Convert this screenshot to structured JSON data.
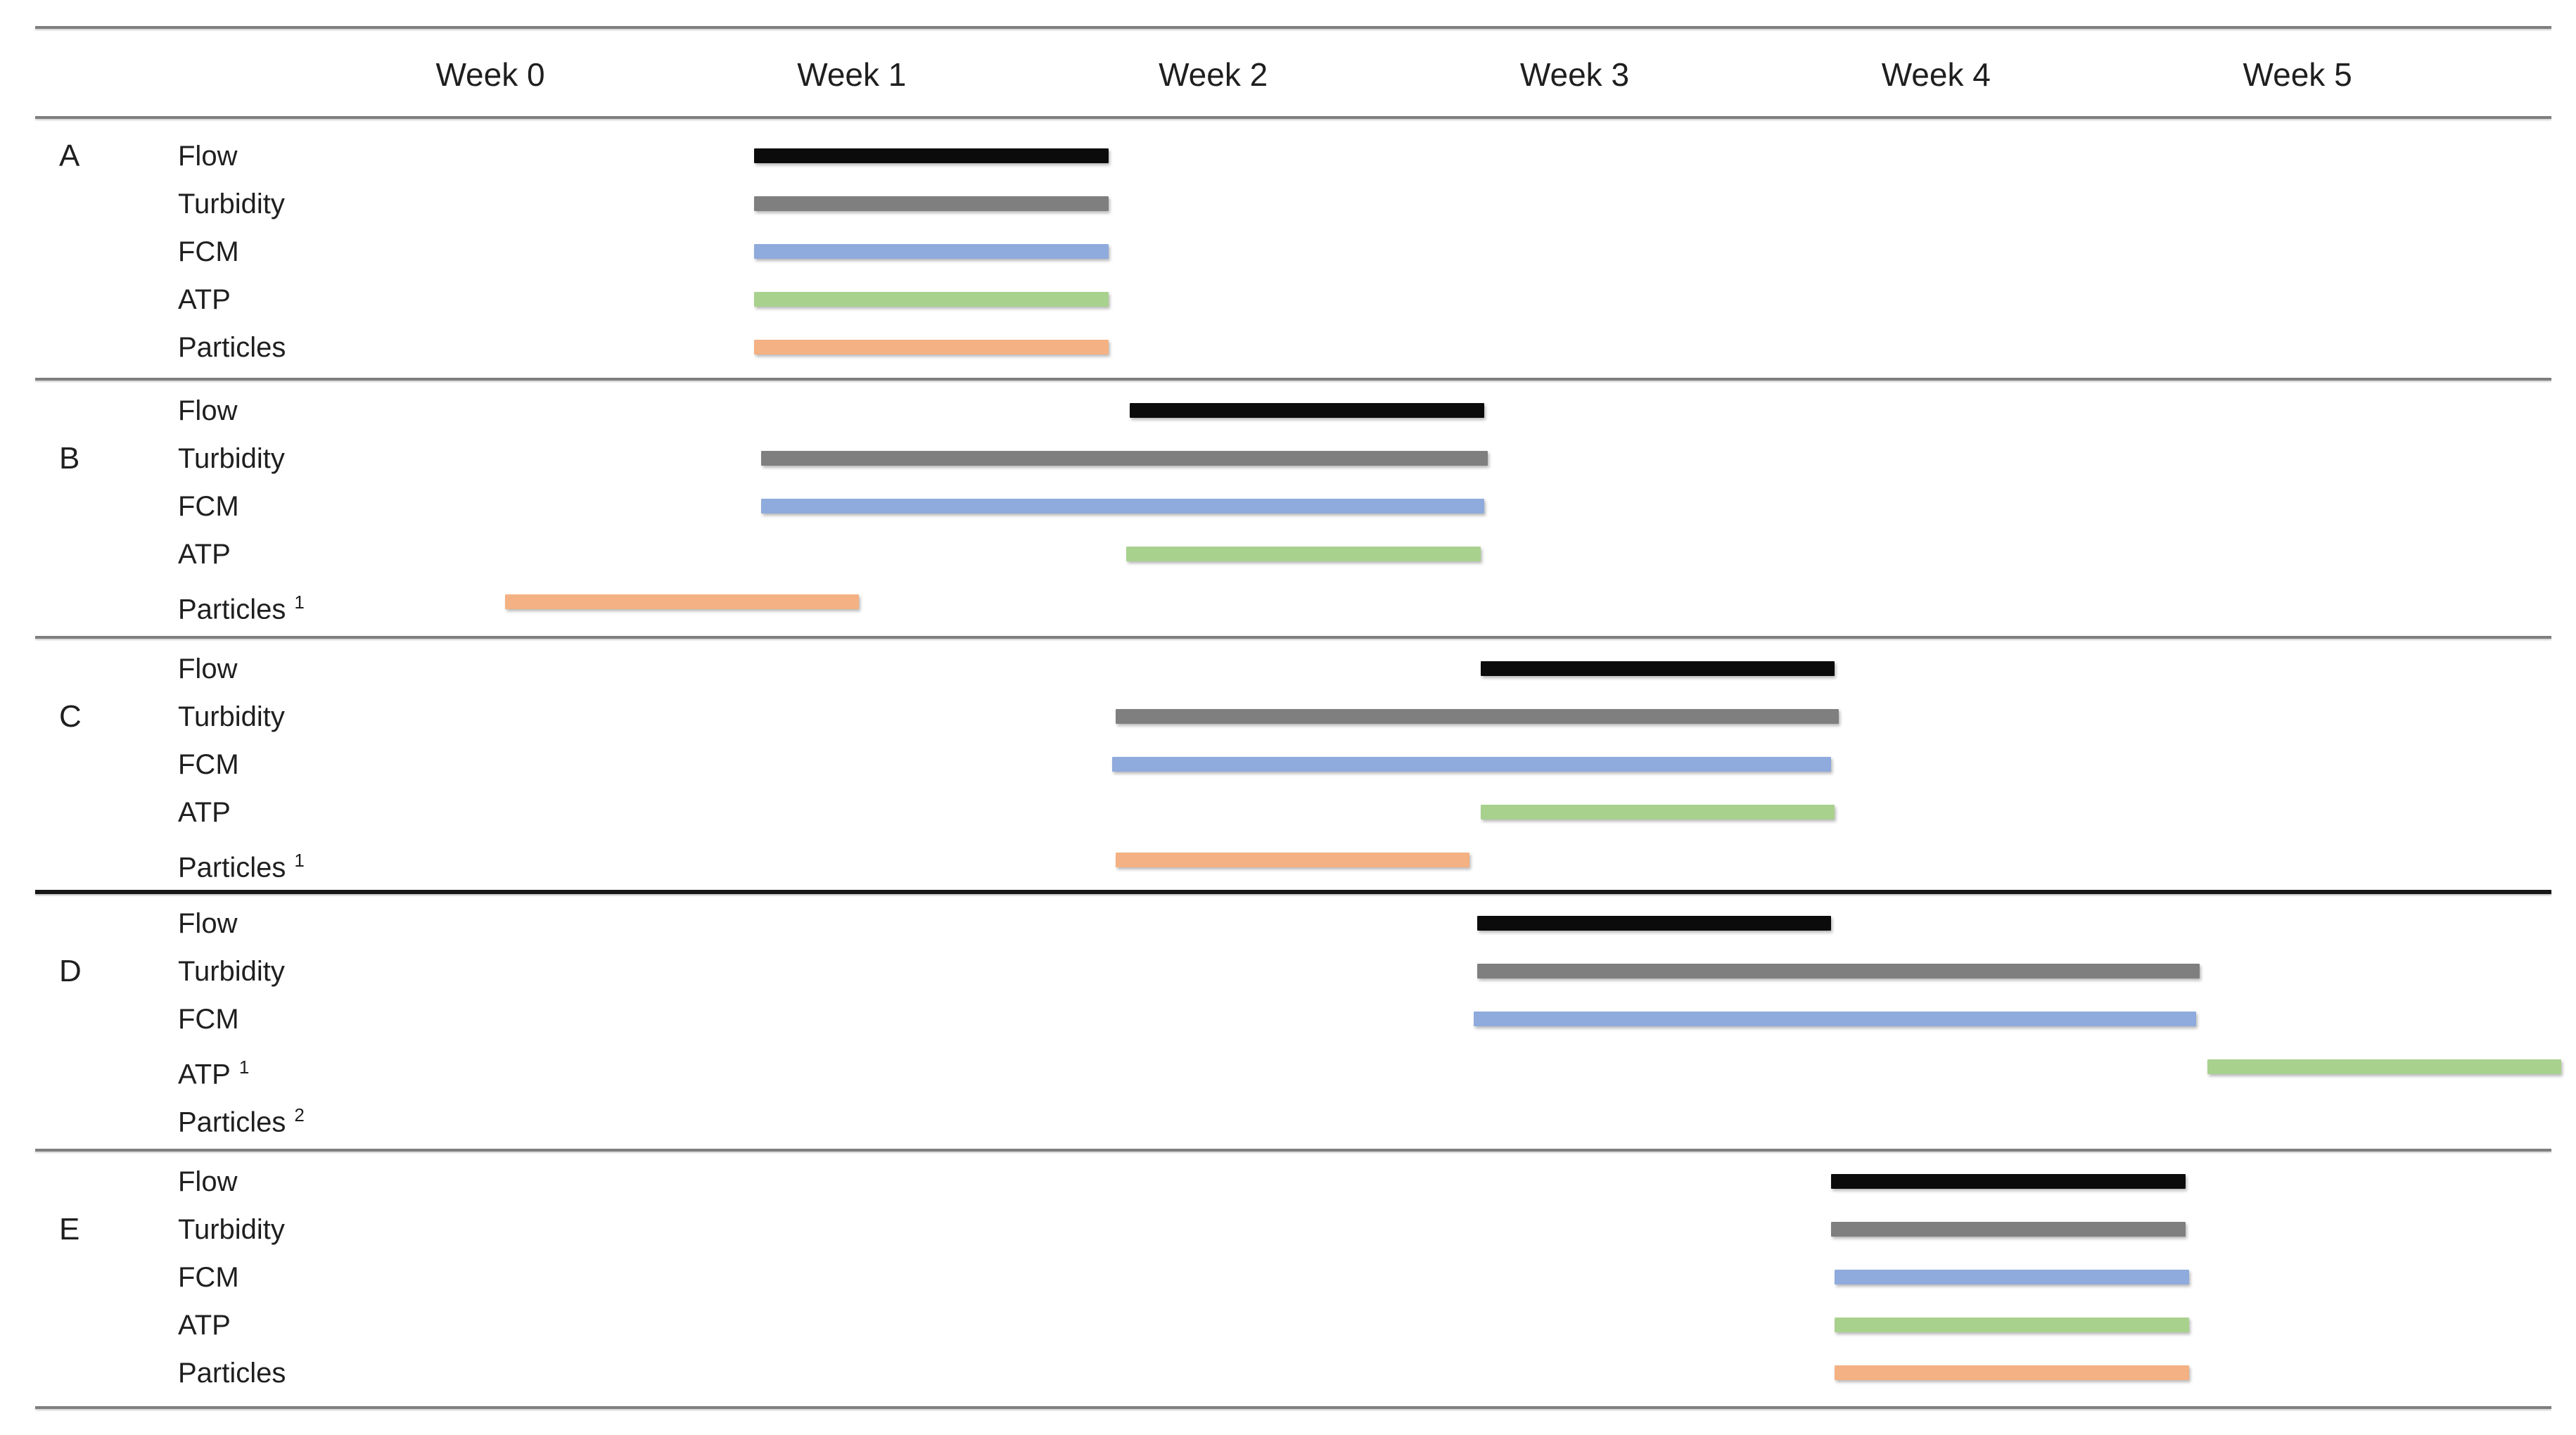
{
  "colors": {
    "background": "#ffffff",
    "text": "#1f1f1f",
    "divider": "#7f7f7f",
    "divider_dark": "#161616",
    "series": {
      "Flow": "#0b0b0b",
      "Turbidity": "#7f7f7f",
      "FCM": "#8faadc",
      "ATP": "#a9d18e",
      "Particles": "#f4b183"
    }
  },
  "chart_data": {
    "type": "gantt",
    "x_unit": "weeks",
    "week_labels": [
      "Week 0",
      "Week 1",
      "Week 2",
      "Week 3",
      "Week 4",
      "Week 5"
    ],
    "axis": {
      "week0_center_frac": 0.19034,
      "week_spacing_frac": 0.14031,
      "gridlines": false,
      "x_range_weeks": [
        -1.25,
        5.8
      ]
    },
    "panels": [
      {
        "site": "A",
        "rows": [
          {
            "label": "Flow",
            "note": "",
            "start_week": 0.73,
            "end_week": 1.71
          },
          {
            "label": "Turbidity",
            "note": "",
            "start_week": 0.73,
            "end_week": 1.71
          },
          {
            "label": "FCM",
            "note": "",
            "start_week": 0.73,
            "end_week": 1.71
          },
          {
            "label": "ATP",
            "note": "",
            "start_week": 0.73,
            "end_week": 1.71
          },
          {
            "label": "Particles",
            "note": "",
            "start_week": 0.73,
            "end_week": 1.71
          }
        ]
      },
      {
        "site": "B",
        "rows": [
          {
            "label": "Flow",
            "note": "",
            "start_week": 1.77,
            "end_week": 2.75
          },
          {
            "label": "Turbidity",
            "note": "",
            "start_week": 0.75,
            "end_week": 2.76
          },
          {
            "label": "FCM",
            "note": "",
            "start_week": 0.75,
            "end_week": 2.75
          },
          {
            "label": "ATP",
            "note": "",
            "start_week": 1.76,
            "end_week": 2.74
          },
          {
            "label": "Particles",
            "note": "1",
            "start_week": 0.04,
            "end_week": 1.02
          }
        ]
      },
      {
        "site": "C",
        "rows": [
          {
            "label": "Flow",
            "note": "",
            "start_week": 2.74,
            "end_week": 3.72
          },
          {
            "label": "Turbidity",
            "note": "",
            "start_week": 1.73,
            "end_week": 3.73
          },
          {
            "label": "FCM",
            "note": "",
            "start_week": 1.72,
            "end_week": 3.71
          },
          {
            "label": "ATP",
            "note": "",
            "start_week": 2.74,
            "end_week": 3.72
          },
          {
            "label": "Particles",
            "note": "1",
            "start_week": 1.73,
            "end_week": 2.71
          }
        ]
      },
      {
        "site": "D",
        "rows": [
          {
            "label": "Flow",
            "note": "",
            "start_week": 2.73,
            "end_week": 3.71
          },
          {
            "label": "Turbidity",
            "note": "",
            "start_week": 2.73,
            "end_week": 4.73
          },
          {
            "label": "FCM",
            "note": "",
            "start_week": 2.72,
            "end_week": 4.72
          },
          {
            "label": "ATP",
            "note": "1",
            "start_week": 4.75,
            "end_week": 5.73
          },
          {
            "label": "Particles",
            "note": "2",
            "start_week": null,
            "end_week": null
          }
        ]
      },
      {
        "site": "E",
        "rows": [
          {
            "label": "Flow",
            "note": "",
            "start_week": 3.71,
            "end_week": 4.69
          },
          {
            "label": "Turbidity",
            "note": "",
            "start_week": 3.71,
            "end_week": 4.69
          },
          {
            "label": "FCM",
            "note": "",
            "start_week": 3.72,
            "end_week": 4.7
          },
          {
            "label": "ATP",
            "note": "",
            "start_week": 3.72,
            "end_week": 4.7
          },
          {
            "label": "Particles",
            "note": "",
            "start_week": 3.72,
            "end_week": 4.7
          }
        ]
      }
    ]
  }
}
